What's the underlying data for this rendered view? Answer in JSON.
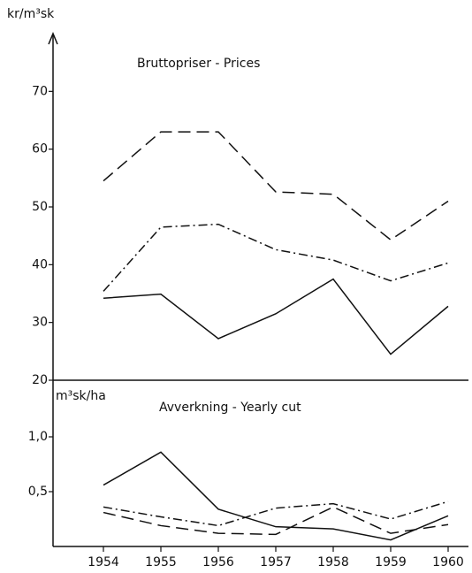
{
  "chart_data": [
    {
      "type": "line",
      "title": "Bruttopriser - Prices",
      "ylabel": "kr/m³sk",
      "ylim": [
        20,
        80
      ],
      "yticks": [
        20,
        30,
        40,
        50,
        60,
        70
      ],
      "series": [
        {
          "style": "dashed",
          "color": "#111111",
          "values": [
            54.5,
            63,
            63,
            52.6,
            52.2,
            44.3,
            51
          ]
        },
        {
          "style": "dashdot",
          "color": "#111111",
          "values": [
            35.4,
            46.5,
            47,
            42.6,
            40.8,
            37.2,
            40.3
          ]
        },
        {
          "style": "solid",
          "color": "#111111",
          "values": [
            34.2,
            34.9,
            27.2,
            31.5,
            37.5,
            24.5,
            32.8
          ]
        }
      ]
    },
    {
      "type": "line",
      "title": "Avverkning - Yearly cut",
      "ylabel": "m³sk/ha",
      "categories": [
        1954,
        1955,
        1956,
        1957,
        1958,
        1959,
        1960
      ],
      "ylim": [
        0,
        1.5
      ],
      "yticks": [
        {
          "value": 0.5,
          "label": "0,5"
        },
        {
          "value": 1.0,
          "label": "1,0"
        }
      ],
      "series": [
        {
          "style": "solid",
          "color": "#111111",
          "values": [
            0.56,
            0.86,
            0.34,
            0.18,
            0.16,
            0.06,
            0.28
          ]
        },
        {
          "style": "dashdot",
          "color": "#111111",
          "values": [
            0.36,
            0.27,
            0.19,
            0.35,
            0.39,
            0.25,
            0.41
          ]
        },
        {
          "style": "dashed",
          "color": "#111111",
          "values": [
            0.31,
            0.19,
            0.12,
            0.11,
            0.36,
            0.12,
            0.2
          ]
        }
      ]
    }
  ]
}
